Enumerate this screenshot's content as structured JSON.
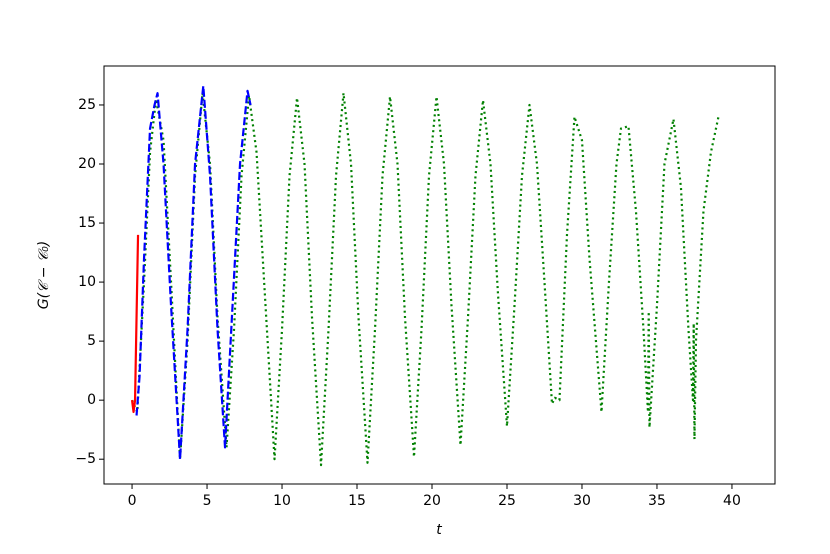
{
  "chart_data": {
    "type": "line",
    "xlabel": "t",
    "ylabel": "G(𝒞 − 𝒞₀)",
    "xlim": [
      -1.87,
      42.87
    ],
    "ylim": [
      -7.1,
      28.3
    ],
    "xticks": [
      0,
      5,
      10,
      15,
      20,
      25,
      30,
      35,
      40
    ],
    "yticks": [
      {
        "value": -5,
        "label": "−5"
      },
      0,
      5,
      10,
      15,
      20,
      25
    ],
    "grid": false,
    "series": [
      {
        "color": "#008000",
        "linestyle": "dotted",
        "x": [
          0,
          0.35,
          0.8,
          1.2,
          1.6,
          2.1,
          2.6,
          3.2,
          3.7,
          4.2,
          4.7,
          5.2,
          5.7,
          6.3,
          6.8,
          7.3,
          7.8,
          8.3,
          8.9,
          9.5,
          10.0,
          10.5,
          11.0,
          11.5,
          12.0,
          12.6,
          13.1,
          13.6,
          14.1,
          14.6,
          15.1,
          15.7,
          16.2,
          16.7,
          17.2,
          17.7,
          18.2,
          18.8,
          19.3,
          19.8,
          20.3,
          20.8,
          21.3,
          21.9,
          22.4,
          22.9,
          23.4,
          23.9,
          24.4,
          25.0,
          25.5,
          26.0,
          26.5,
          27.0,
          27.5,
          28.0,
          28.2,
          28.5,
          29.0,
          29.5,
          30.0,
          30.5,
          31.3,
          31.8,
          32.3,
          32.6,
          33.1,
          33.6,
          34.1,
          34.4,
          34.45,
          34.5,
          35.0,
          35.5,
          36.1,
          36.6,
          37.1,
          37.4,
          37.45,
          37.5,
          37.6,
          38.1,
          38.6,
          39.1
        ],
        "values": [
          0,
          -1,
          10,
          21,
          25.5,
          22,
          10,
          -5,
          5,
          19,
          26,
          20,
          7,
          -4,
          6,
          19,
          25.8,
          21,
          8,
          -5,
          6,
          19,
          25.6,
          20,
          7,
          -5.5,
          6,
          19,
          26,
          20,
          7,
          -5.3,
          6,
          19,
          25.7,
          20,
          7,
          -4.8,
          6,
          19,
          25.7,
          20,
          8,
          -3.8,
          7,
          19,
          25.4,
          20,
          9,
          -2.2,
          8,
          19,
          25,
          20,
          10,
          -0.3,
          0.2,
          0,
          14,
          24,
          22,
          12,
          -1,
          10,
          20,
          23,
          23.2,
          16,
          6,
          -1,
          7.5,
          -2.3,
          8,
          20,
          23.8,
          18,
          6,
          0,
          6.5,
          -3.3,
          5,
          16,
          21,
          24
        ]
      },
      {
        "color": "#0000ff",
        "linestyle": "dashed",
        "x": [
          0.3,
          0.5,
          0.8,
          1.2,
          1.5,
          1.7,
          2.1,
          2.6,
          3.2,
          3.7,
          4.2,
          4.75,
          5.2,
          5.7,
          6.2,
          6.7,
          7.2,
          7.7,
          7.9
        ],
        "values": [
          -1.3,
          2,
          12,
          23,
          25,
          26,
          20,
          8,
          -5,
          6,
          20,
          26.6,
          19,
          6,
          -4,
          8,
          20,
          26.2,
          25
        ]
      },
      {
        "color": "#ff0000",
        "linestyle": "solid",
        "x": [
          0,
          0.1,
          0.2,
          0.4
        ],
        "values": [
          0,
          -1,
          0,
          14
        ]
      }
    ]
  }
}
